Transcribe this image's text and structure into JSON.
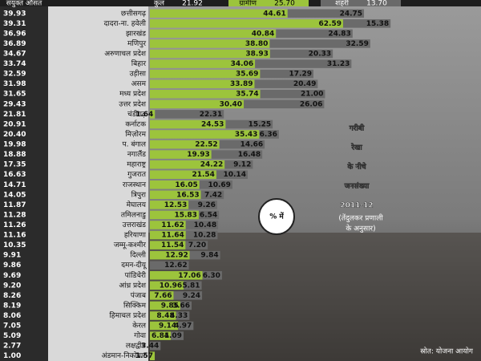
{
  "chart_data": {
    "type": "bar",
    "categories": [
      "छत्तीसगढ़",
      "दादरा-ना. हवेली",
      "झारखंड",
      "मणिपुर",
      "अरुणाचल प्रदेश",
      "बिहार",
      "उड़ीसा",
      "असम",
      "मध्य प्रदेश",
      "उत्तर प्रदेश",
      "चंडीगढ़",
      "कर्नाटक",
      "मिज़ोरम",
      "प. बंगाल",
      "नगालैंड",
      "महाराष्ट्र",
      "गुजरात",
      "राजस्थान",
      "त्रिपुरा",
      "मेघालय",
      "तमिलनाडु",
      "उत्तराखंड",
      "हरियाणा",
      "जम्मू-कश्मीर",
      "दिल्ली",
      "दमन-दीयू",
      "पांडिचेरी",
      "आंध्र प्रदेश",
      "पंजाब",
      "सिक्किम",
      "हिमाचल प्रदेश",
      "केरल",
      "गोवा",
      "लक्षद्वीप",
      "अंडमान-निकोबार"
    ],
    "series": [
      {
        "name": "संयुक्त औसत",
        "color": "#2b2b2b",
        "header": "कुल",
        "average": 21.92,
        "average_label": "21.92",
        "values": [
          39.93,
          39.31,
          36.96,
          36.89,
          34.67,
          33.74,
          32.59,
          31.98,
          31.65,
          29.43,
          21.81,
          20.91,
          20.4,
          19.98,
          18.88,
          17.35,
          16.63,
          14.71,
          14.05,
          11.87,
          11.28,
          11.26,
          11.16,
          10.35,
          9.91,
          9.86,
          9.69,
          9.2,
          8.26,
          8.19,
          8.06,
          7.05,
          5.09,
          2.77,
          1
        ],
        "value_labels": [
          "39.93",
          "39.31",
          "36.96",
          "36.89",
          "34.67",
          "33.74",
          "32.59",
          "31.98",
          "31.65",
          "29.43",
          "21.81",
          "20.91",
          "20.40",
          "19.98",
          "18.88",
          "17.35",
          "16.63",
          "14.71",
          "14.05",
          "11.87",
          "11.28",
          "11.26",
          "11.16",
          "10.35",
          "9.91",
          "9.86",
          "9.69",
          "9.20",
          "8.26",
          "8.19",
          "8.06",
          "7.05",
          "5.09",
          "2.77",
          "1.00"
        ]
      },
      {
        "name": "ग्रामीण",
        "color": "#9cc43c",
        "average": 25.7,
        "average_label": "25.70",
        "values": [
          44.61,
          62.59,
          40.84,
          38.8,
          38.93,
          34.06,
          35.69,
          33.89,
          35.74,
          30.4,
          1.64,
          24.53,
          35.43,
          22.52,
          19.93,
          24.22,
          21.54,
          16.05,
          16.53,
          12.53,
          15.83,
          11.62,
          11.64,
          11.54,
          12.92,
          null,
          17.06,
          10.96,
          7.66,
          9.85,
          8.48,
          9.14,
          6.81,
          null,
          1.57
        ],
        "value_labels": [
          "44.61",
          "62.59",
          "40.84",
          "38.80",
          "38.93",
          "34.06",
          "35.69",
          "33.89",
          "35.74",
          "30.40",
          "1.64",
          "24.53",
          "35.43",
          "22.52",
          "19.93",
          "24.22",
          "21.54",
          "16.05",
          "16.53",
          "12.53",
          "15.83",
          "11.62",
          "11.64",
          "11.54",
          "12.92",
          null,
          "17.06",
          "10.96",
          "7.66",
          "9.85",
          "8.48",
          "9.14",
          "6.81",
          null,
          "1.57"
        ]
      },
      {
        "name": "शहरी",
        "color": "#6a6a6a",
        "average": 13.7,
        "average_label": "13.70",
        "values": [
          24.75,
          15.38,
          24.83,
          32.59,
          20.33,
          31.23,
          17.29,
          20.49,
          21,
          26.06,
          22.31,
          15.25,
          6.36,
          14.66,
          16.48,
          9.12,
          10.14,
          10.69,
          7.42,
          9.26,
          6.54,
          10.48,
          10.28,
          7.2,
          9.84,
          12.62,
          6.3,
          5.81,
          9.24,
          3.66,
          4.33,
          4.97,
          4.09,
          3.44,
          null
        ],
        "value_labels": [
          "24.75",
          "15.38",
          "24.83",
          "32.59",
          "20.33",
          "31.23",
          "17.29",
          "20.49",
          "21.00",
          "26.06",
          "22.31",
          "15.25",
          "6.36",
          "14.66",
          "16.48",
          "9.12",
          "10.14",
          "10.69",
          "7.42",
          "9.26",
          "6.54",
          "10.48",
          "10.28",
          "7.20",
          "9.84",
          "12.62",
          "6.30",
          "5.81",
          "9.24",
          "3.66",
          "4.33",
          "4.97",
          "4.09",
          "3.44",
          null
        ]
      }
    ],
    "annotations": {
      "title": [
        "गरीबी",
        "रेखा",
        "के नीचे",
        "जनसंख्या",
        "2011-12"
      ],
      "subtitle": [
        "(तेंदुलकर प्रणाली",
        "के अनुसार)"
      ],
      "unit": "% में",
      "source": "स्रोत: योजना आयोग"
    }
  }
}
